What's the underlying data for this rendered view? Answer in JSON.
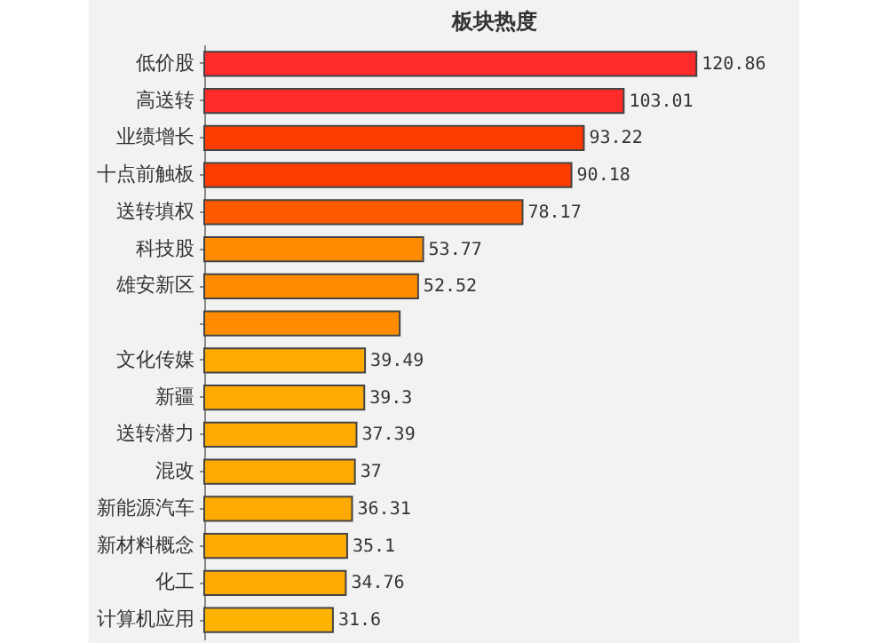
{
  "chart_data": {
    "type": "bar",
    "title": "板块热度",
    "orientation": "horizontal",
    "categories": [
      "低价股",
      "高送转",
      "业绩增长",
      "十点前触板",
      "送转填权",
      "科技股",
      "雄安新区",
      null,
      "文化传媒",
      "新疆",
      "送转潜力",
      "混改",
      "新能源汽车",
      "新材料概念",
      "化工",
      "计算机应用"
    ],
    "values": [
      120.86,
      103.01,
      93.22,
      90.18,
      78.17,
      53.77,
      52.52,
      48,
      39.49,
      39.3,
      37.39,
      37,
      36.31,
      35.1,
      34.76,
      31.6
    ],
    "value_labels": [
      "120.86",
      "103.01",
      "93.22",
      "90.18",
      "78.17",
      "53.77",
      "52.52",
      null,
      "39.49",
      "39.3",
      "37.39",
      "37",
      "36.31",
      "35.1",
      "34.76",
      "31.6"
    ],
    "colors": [
      "#ff2a2a",
      "#ff2a2a",
      "#ff3c00",
      "#ff3c00",
      "#ff5a00",
      "#ff8c00",
      "#ff8c00",
      "#ff8c00",
      "#ffaa00",
      "#ffaa00",
      "#ffaa00",
      "#ffaa00",
      "#ffaa00",
      "#ffaa00",
      "#ffaa00",
      "#ffb400"
    ]
  }
}
